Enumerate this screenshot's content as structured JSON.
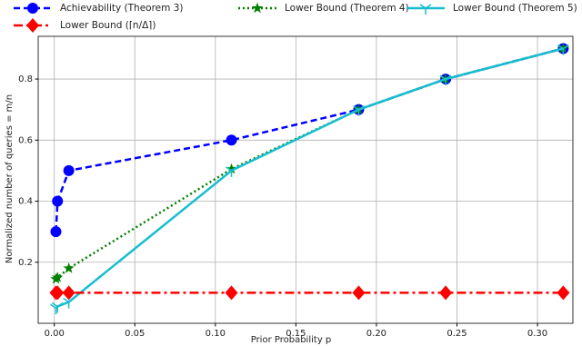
{
  "chart_data": {
    "type": "line",
    "xlabel": "Prior Probability p",
    "ylabel": "Normalized number of queries = m/n",
    "x": [
      0.001,
      0.002,
      0.009,
      0.11,
      0.189,
      0.243,
      0.316
    ],
    "series": [
      {
        "name": "Achievability (Theorem 3)",
        "color": "#0000ff",
        "linestyle": "dashed",
        "marker": "circle",
        "values": [
          0.3,
          0.4,
          0.5,
          0.6,
          0.7,
          0.8,
          0.9
        ]
      },
      {
        "name": "Lower Bound (Theorem 4)",
        "color": "#007f00",
        "linestyle": "dotted",
        "marker": "star",
        "values": [
          0.145,
          0.15,
          0.18,
          0.505,
          0.7,
          0.8,
          0.9
        ]
      },
      {
        "name": "Lower Bound (Theorem 5)",
        "color": "#17becf",
        "linestyle": "solid",
        "marker": "tri",
        "values": [
          0.05,
          0.055,
          0.07,
          0.5,
          0.7,
          0.8,
          0.9
        ]
      },
      {
        "name": "Lower Bound (⌈n/Δ⌉)",
        "color": "#ff0000",
        "linestyle": "dashdot",
        "marker": "diamond",
        "values": [
          0.1,
          0.1,
          0.1,
          0.1,
          0.1,
          0.1,
          0.1
        ]
      }
    ],
    "xlim": [
      -0.01,
      0.322
    ],
    "ylim": [
      0,
      0.94
    ],
    "xticks": [
      {
        "value": 0,
        "label": "0.00"
      },
      {
        "value": 0.05,
        "label": "0.05"
      },
      {
        "value": 0.1,
        "label": "0.10"
      },
      {
        "value": 0.15,
        "label": "0.15"
      },
      {
        "value": 0.2,
        "label": "0.20"
      },
      {
        "value": 0.25,
        "label": "0.25"
      },
      {
        "value": 0.3,
        "label": "0.30"
      }
    ],
    "yticks": [
      0.2,
      0.4,
      0.6,
      0.8
    ],
    "grid": true
  }
}
